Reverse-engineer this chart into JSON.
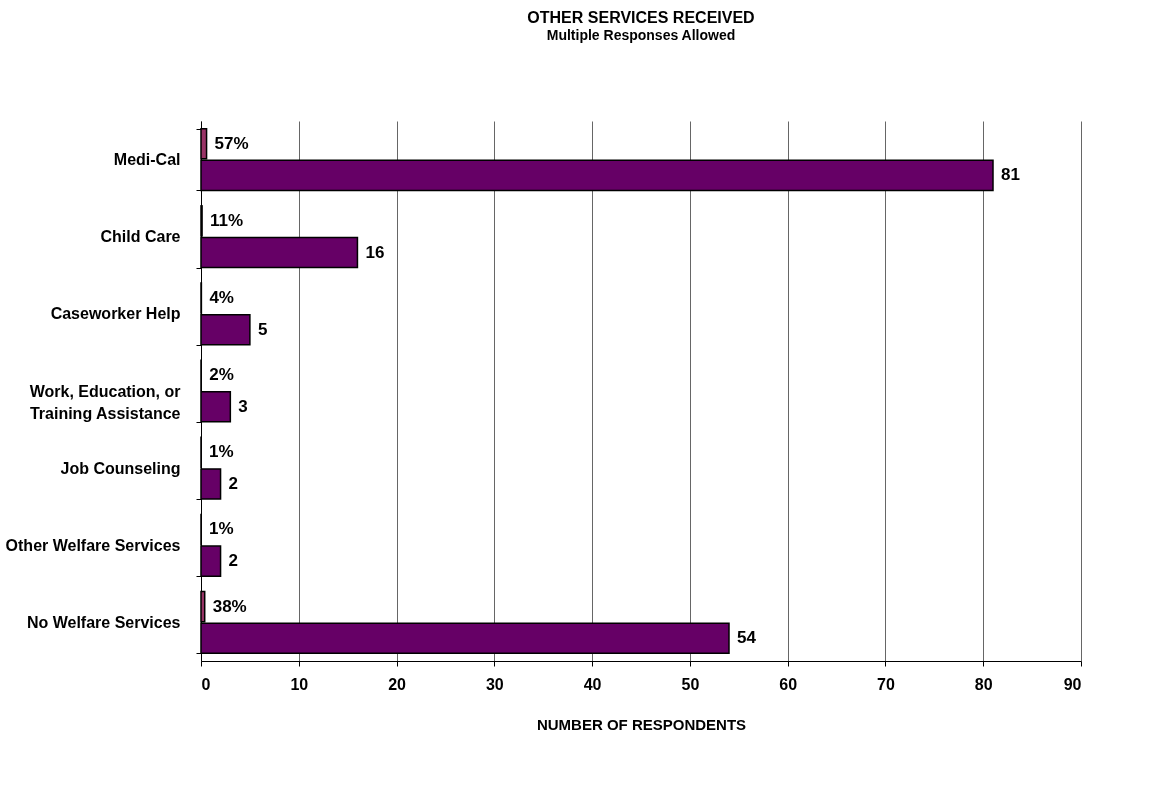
{
  "chart_data": {
    "type": "bar",
    "orientation": "horizontal",
    "title": "OTHER SERVICES RECEIVED",
    "subtitle": "Multiple Responses Allowed",
    "xlabel": "NUMBER OF RESPONDENTS",
    "categories": [
      "Medi-Cal",
      "Child Care",
      "Caseworker Help",
      "Work, Education, or Training Assistance",
      "Job Counseling",
      "Other Welfare Services",
      "No Welfare Services"
    ],
    "series": [
      {
        "color": "#993366",
        "values": [
          0.57,
          0.11,
          0.04,
          0.02,
          0.01,
          0.01,
          0.38
        ],
        "value_labels": [
          "57%",
          "11%",
          "4%",
          "2%",
          "1%",
          "1%",
          "38%"
        ]
      },
      {
        "color": "#660066",
        "values": [
          81,
          16,
          5,
          3,
          2,
          2,
          54
        ],
        "value_labels": [
          "81",
          "16",
          "5",
          "3",
          "2",
          "2",
          "54"
        ]
      }
    ],
    "xlim": [
      0,
      90
    ],
    "xticks": [
      0,
      10,
      20,
      30,
      40,
      50,
      60,
      70,
      80,
      90
    ],
    "grid": "x"
  }
}
